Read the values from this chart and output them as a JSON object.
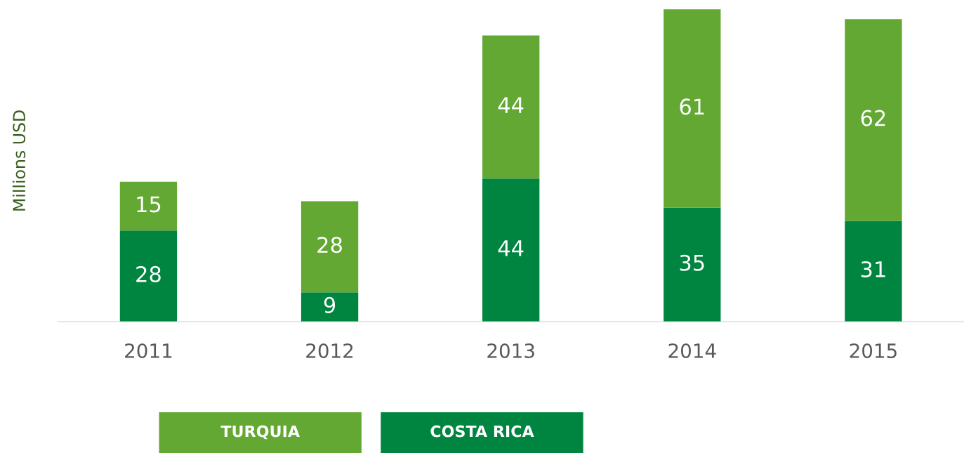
{
  "chart_data": {
    "type": "bar",
    "stacked": true,
    "ylabel": "Millions USD",
    "categories": [
      "2011",
      "2012",
      "2013",
      "2014",
      "2015"
    ],
    "series": [
      {
        "name": "COSTA RICA",
        "color": "#008540",
        "values": [
          28,
          9,
          44,
          35,
          31
        ]
      },
      {
        "name": "TURQUIA",
        "color": "#62a832",
        "values": [
          15,
          28,
          44,
          61,
          62
        ]
      }
    ],
    "data_labels": true,
    "legend": "bottom",
    "grid": false
  }
}
